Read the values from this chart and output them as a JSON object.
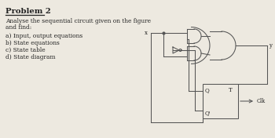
{
  "title": "Problem 2",
  "desc1": "Analyse the sequential circuit given on the figure",
  "desc2": "and find:",
  "items": [
    "a) Input, output equations",
    "b) State equations",
    "c) State table",
    "d) State diagram"
  ],
  "bg": "#ede9e0",
  "lc": "#555555",
  "tc": "#222222",
  "title_fs": 7.2,
  "body_fs": 5.4,
  "lw": 0.75
}
